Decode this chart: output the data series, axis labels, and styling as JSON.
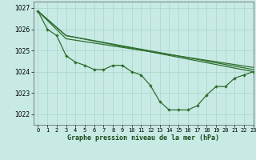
{
  "title": "Graphe pression niveau de la mer (hPa)",
  "bg_color": "#c8eae4",
  "grid_color": "#a8d4cc",
  "line_color": "#2d6e2d",
  "xlim": [
    -0.5,
    23
  ],
  "ylim": [
    1021.5,
    1027.3
  ],
  "yticks": [
    1022,
    1023,
    1024,
    1025,
    1026,
    1027
  ],
  "xticks": [
    0,
    1,
    2,
    3,
    4,
    5,
    6,
    7,
    8,
    9,
    10,
    11,
    12,
    13,
    14,
    15,
    16,
    17,
    18,
    19,
    20,
    21,
    22,
    23
  ],
  "series_curved": {
    "x": [
      0,
      1,
      2,
      3,
      4,
      5,
      6,
      7,
      8,
      9,
      10,
      11,
      12,
      13,
      14,
      15,
      16,
      17,
      18,
      19,
      20,
      21,
      22,
      23
    ],
    "y": [
      1026.85,
      1026.0,
      1025.7,
      1024.75,
      1024.45,
      1024.3,
      1024.1,
      1024.1,
      1024.3,
      1024.3,
      1024.0,
      1023.85,
      1023.35,
      1022.6,
      1022.2,
      1022.2,
      1022.2,
      1022.4,
      1022.9,
      1023.3,
      1023.3,
      1023.7,
      1023.85,
      1024.0
    ]
  },
  "series_straight": [
    {
      "x": [
        0,
        3,
        23
      ],
      "y": [
        1026.85,
        1025.7,
        1024.0
      ]
    },
    {
      "x": [
        0,
        3,
        23
      ],
      "y": [
        1026.85,
        1025.7,
        1024.1
      ]
    },
    {
      "x": [
        0,
        3,
        23
      ],
      "y": [
        1026.85,
        1025.55,
        1024.2
      ]
    }
  ]
}
